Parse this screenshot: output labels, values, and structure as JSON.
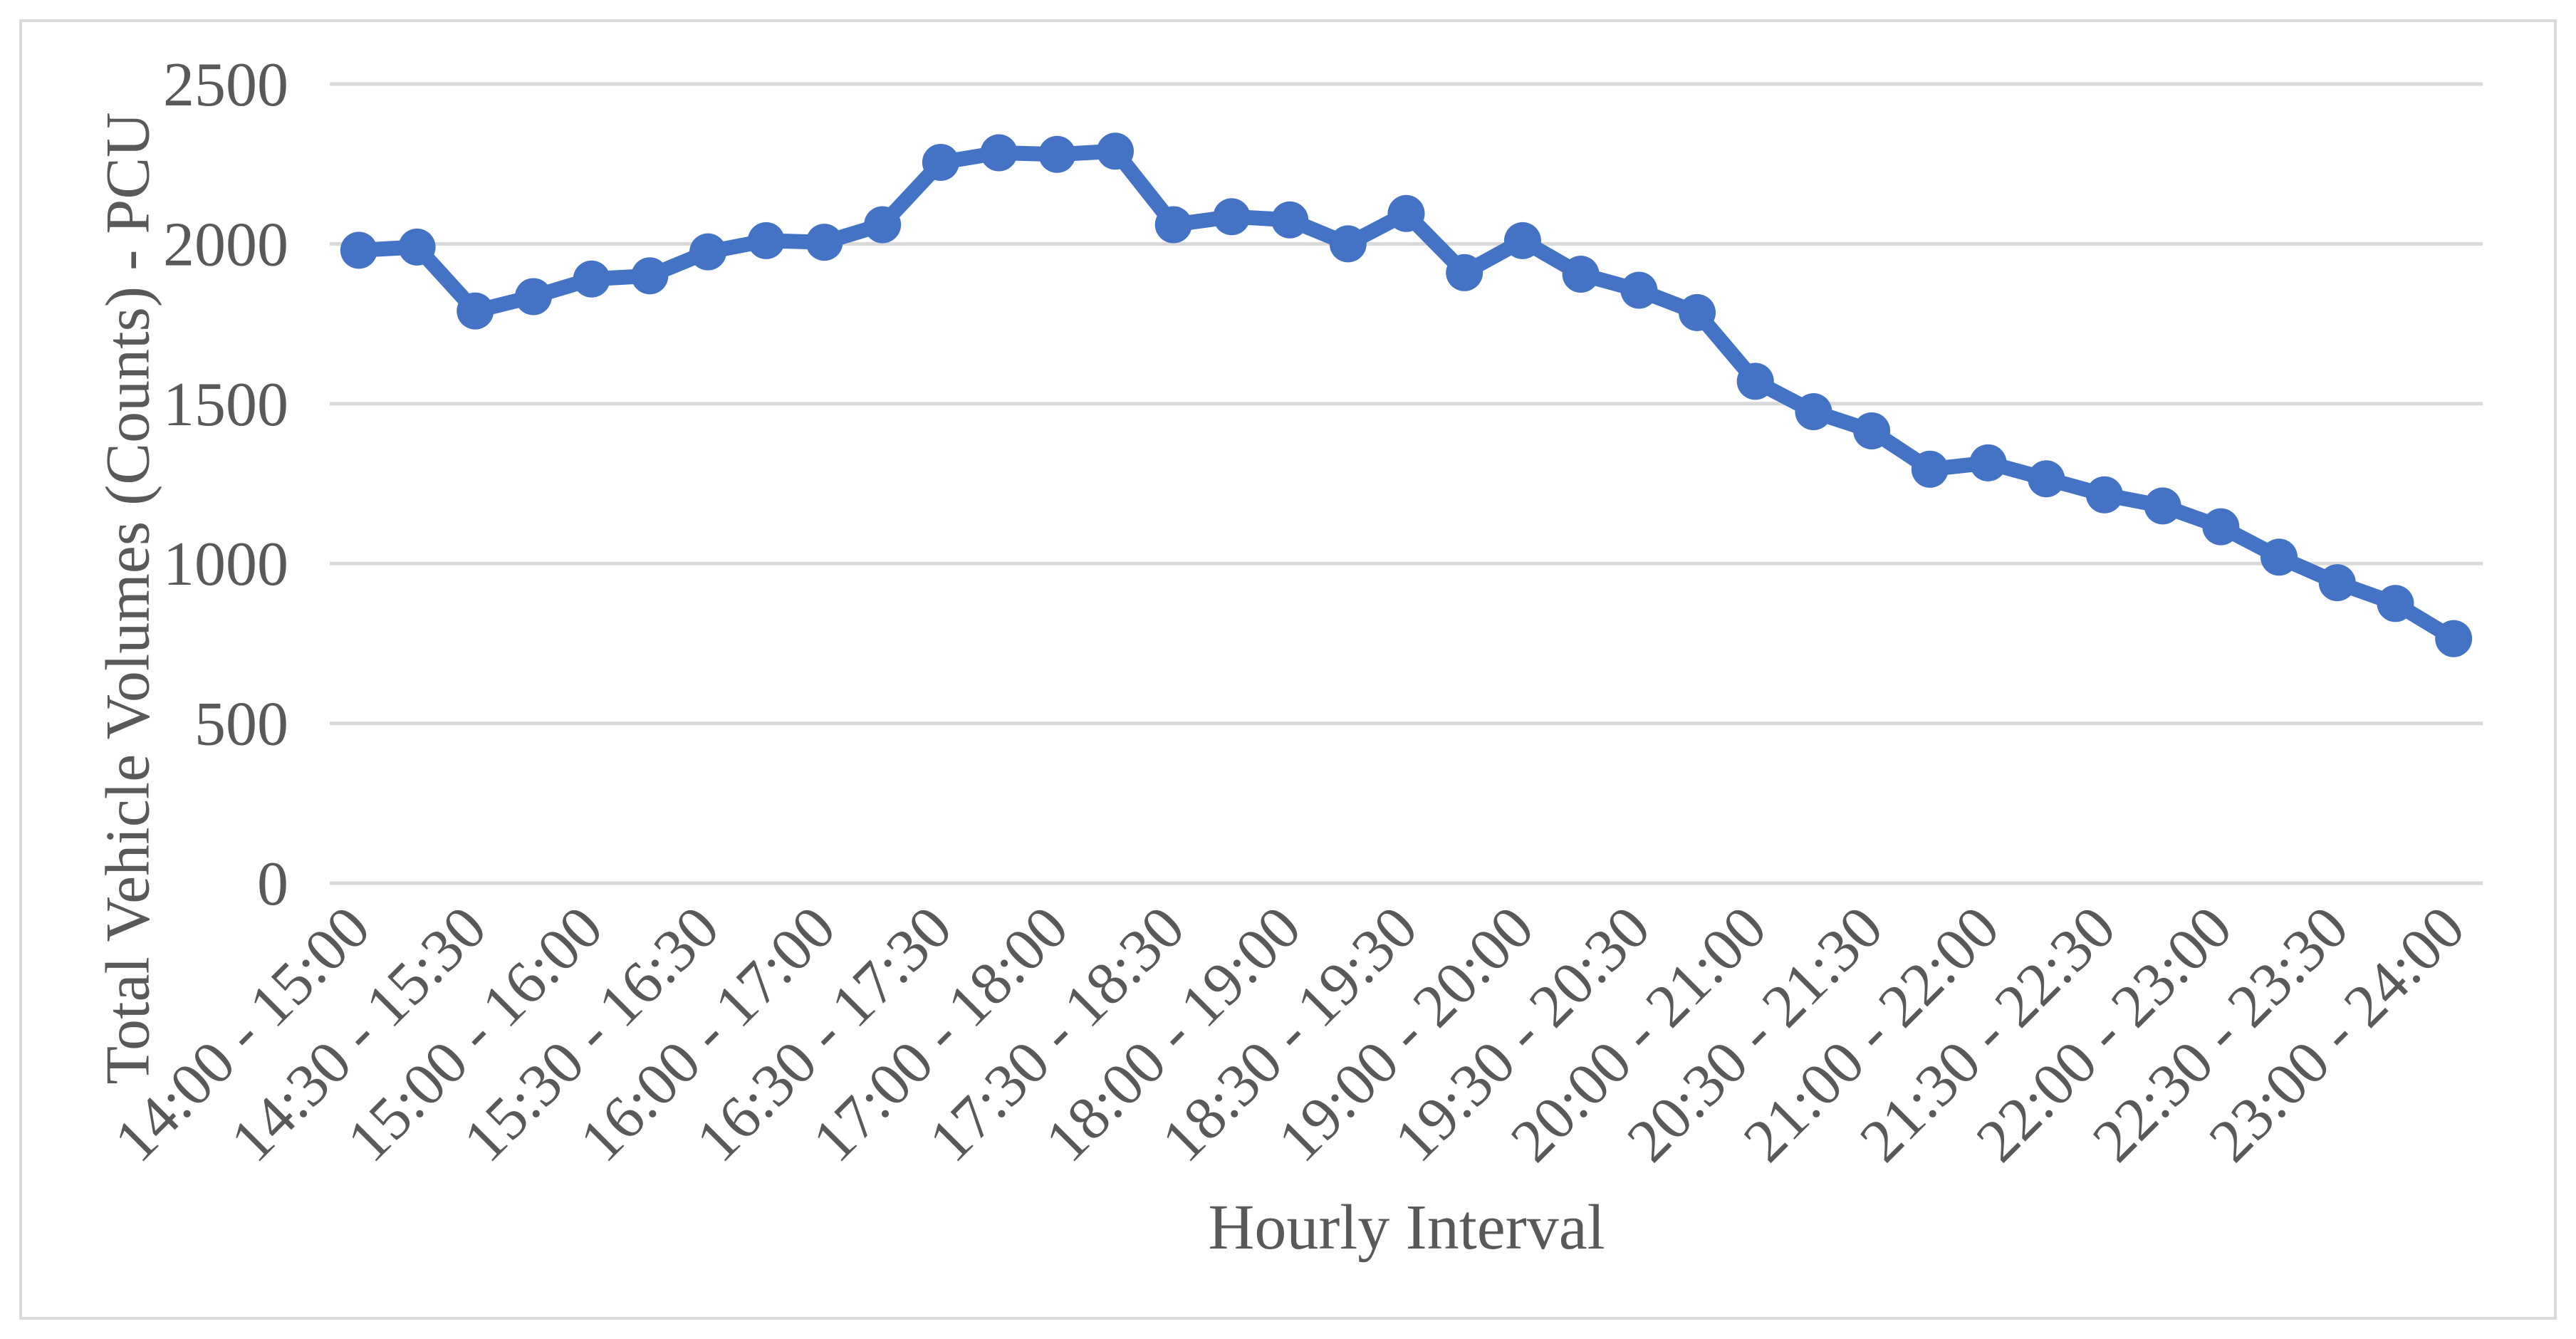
{
  "chart_data": {
    "type": "line",
    "title": "",
    "xlabel": "Hourly Interval",
    "ylabel": "Total Vehicle Volumes (Counts) - PCU",
    "ylim": [
      0,
      2500
    ],
    "y_ticks": [
      "0",
      "500",
      "1000",
      "1500",
      "2000",
      "2500"
    ],
    "y_tick_values": [
      0,
      500,
      1000,
      1500,
      2000,
      2500
    ],
    "grid": true,
    "legend_position": "none",
    "x_tick_labels": [
      "14:00 - 15:00",
      "14:30 - 15:30",
      "15:00 - 16:00",
      "15:30 - 16:30",
      "16:00 - 17:00",
      "16:30 - 17:30",
      "17:00 - 18:00",
      "17:30 - 18:30",
      "18:00 - 19:00",
      "18:30 - 19:30",
      "19:00 - 20:00",
      "19:30 - 20:30",
      "20:00 - 21:00",
      "20:30 - 21:30",
      "21:00 - 22:00",
      "21:30 - 22:30",
      "22:00 - 23:00",
      "22:30 - 23:30",
      "23:00 - 24:00"
    ],
    "x_tick_every": 2,
    "values": [
      1980,
      1990,
      1790,
      1835,
      1890,
      1900,
      1975,
      2010,
      2005,
      2060,
      2255,
      2285,
      2280,
      2290,
      2060,
      2085,
      2075,
      2000,
      2095,
      1910,
      2010,
      1905,
      1855,
      1785,
      1570,
      1475,
      1415,
      1295,
      1315,
      1265,
      1215,
      1180,
      1115,
      1020,
      940,
      875,
      765
    ],
    "colors": {
      "series": "#4472C4",
      "gridline": "#D9D9D9",
      "text": "#595959",
      "frame_border": "#D9D9D9"
    },
    "marker": "circle"
  }
}
